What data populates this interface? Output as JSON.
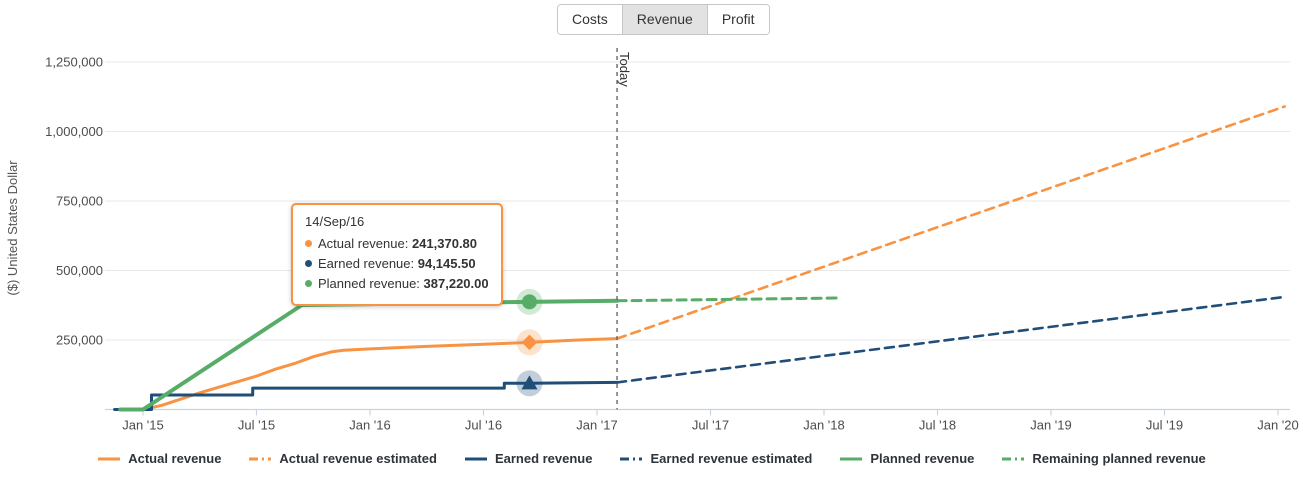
{
  "tabs": {
    "items": [
      {
        "label": "Costs",
        "active": false
      },
      {
        "label": "Revenue",
        "active": true
      },
      {
        "label": "Profit",
        "active": false
      }
    ]
  },
  "tooltip": {
    "date": "14/Sep/16",
    "rows": [
      {
        "label": "Actual revenue",
        "value": "241,370.80",
        "color": "#f79342"
      },
      {
        "label": "Earned revenue",
        "value": "94,145.50",
        "color": "#1f4e79"
      },
      {
        "label": "Planned revenue",
        "value": "387,220.00",
        "color": "#57ad68"
      }
    ]
  },
  "legend": {
    "items": [
      {
        "label": "Actual revenue",
        "color": "#f79342",
        "style": "solid"
      },
      {
        "label": "Actual revenue estimated",
        "color": "#f79342",
        "style": "dashed"
      },
      {
        "label": "Earned revenue",
        "color": "#1f4e79",
        "style": "solid"
      },
      {
        "label": "Earned revenue estimated",
        "color": "#1f4e79",
        "style": "dashed"
      },
      {
        "label": "Planned revenue",
        "color": "#57ad68",
        "style": "solid"
      },
      {
        "label": "Remaining planned revenue",
        "color": "#57ad68",
        "style": "dashed"
      }
    ]
  },
  "chart_data": {
    "type": "line",
    "ylabel": "($) United States Dollar",
    "x_unit": "months since Jan 2015",
    "xlim": [
      -1.6,
      60.6
    ],
    "ylim": [
      0,
      1300000
    ],
    "grid": "horizontal",
    "x_ticks": [
      {
        "t": 0,
        "label": "Jan '15"
      },
      {
        "t": 6,
        "label": "Jul '15"
      },
      {
        "t": 12,
        "label": "Jan '16"
      },
      {
        "t": 18,
        "label": "Jul '16"
      },
      {
        "t": 24,
        "label": "Jan '17"
      },
      {
        "t": 30,
        "label": "Jul '17"
      },
      {
        "t": 36,
        "label": "Jan '18"
      },
      {
        "t": 42,
        "label": "Jul '18"
      },
      {
        "t": 48,
        "label": "Jan '19"
      },
      {
        "t": 54,
        "label": "Jul '19"
      },
      {
        "t": 60,
        "label": "Jan '20"
      }
    ],
    "y_ticks": [
      {
        "v": 250000,
        "label": "250,000"
      },
      {
        "v": 500000,
        "label": "500,000"
      },
      {
        "v": 750000,
        "label": "750,000"
      },
      {
        "v": 1000000,
        "label": "1,000,000"
      },
      {
        "v": 1250000,
        "label": "1,250,000"
      }
    ],
    "today": {
      "t": 25.06,
      "label": "Today"
    },
    "hover": {
      "t": 20.43,
      "date": "14/Sep/16"
    },
    "series": [
      {
        "name": "Actual revenue",
        "color": "#f79342",
        "style": "solid",
        "width": 3,
        "points": [
          [
            0,
            0
          ],
          [
            1,
            15000
          ],
          [
            3,
            60000
          ],
          [
            5,
            100000
          ],
          [
            6,
            120000
          ],
          [
            7,
            145000
          ],
          [
            8,
            165000
          ],
          [
            9,
            190000
          ],
          [
            10,
            208000
          ],
          [
            10.6,
            213000
          ],
          [
            12,
            218000
          ],
          [
            15,
            227000
          ],
          [
            18,
            235000
          ],
          [
            20.43,
            241370.8
          ],
          [
            23,
            250000
          ],
          [
            25.06,
            255000
          ]
        ]
      },
      {
        "name": "Actual revenue estimated",
        "color": "#f79342",
        "style": "dashed",
        "width": 2.6,
        "points": [
          [
            25.06,
            255000
          ],
          [
            60.35,
            1090000
          ]
        ]
      },
      {
        "name": "Earned revenue",
        "color": "#1f4e79",
        "style": "solid",
        "width": 3,
        "points": [
          [
            -1.5,
            0
          ],
          [
            0.45,
            0
          ],
          [
            0.45,
            52000
          ],
          [
            5.8,
            52000
          ],
          [
            5.8,
            77000
          ],
          [
            19.1,
            77000
          ],
          [
            19.1,
            94145.5
          ],
          [
            20.43,
            94145.5
          ],
          [
            25.06,
            97500
          ]
        ]
      },
      {
        "name": "Earned revenue estimated",
        "color": "#1f4e79",
        "style": "dashed",
        "width": 2.6,
        "points": [
          [
            25.06,
            97500
          ],
          [
            60.35,
            405000
          ]
        ]
      },
      {
        "name": "Planned revenue",
        "color": "#57ad68",
        "style": "solid",
        "width": 4,
        "points": [
          [
            -1.2,
            0
          ],
          [
            0,
            0
          ],
          [
            8.4,
            376000
          ],
          [
            12,
            379000
          ],
          [
            16,
            383000
          ],
          [
            20.43,
            387220
          ],
          [
            25.06,
            391000
          ]
        ]
      },
      {
        "name": "Remaining planned revenue",
        "color": "#57ad68",
        "style": "dashed",
        "width": 3,
        "points": [
          [
            25.06,
            391000
          ],
          [
            36.8,
            401000
          ]
        ]
      }
    ],
    "markers": [
      {
        "shape": "circle",
        "series": "Planned revenue",
        "color": "#57ad68",
        "t": 20.43,
        "v": 387220
      },
      {
        "shape": "diamond",
        "series": "Actual revenue",
        "color": "#f79342",
        "t": 20.43,
        "v": 241370.8
      },
      {
        "shape": "triangle",
        "series": "Earned revenue",
        "color": "#1f4e79",
        "t": 20.43,
        "v": 94145.5
      }
    ],
    "colors": {
      "grid": "#e8e8e8",
      "axis": "#c9d4e2",
      "axis_text": "#4c4c4c",
      "today_line": "#666666",
      "legend_text": "#2f343a"
    }
  }
}
